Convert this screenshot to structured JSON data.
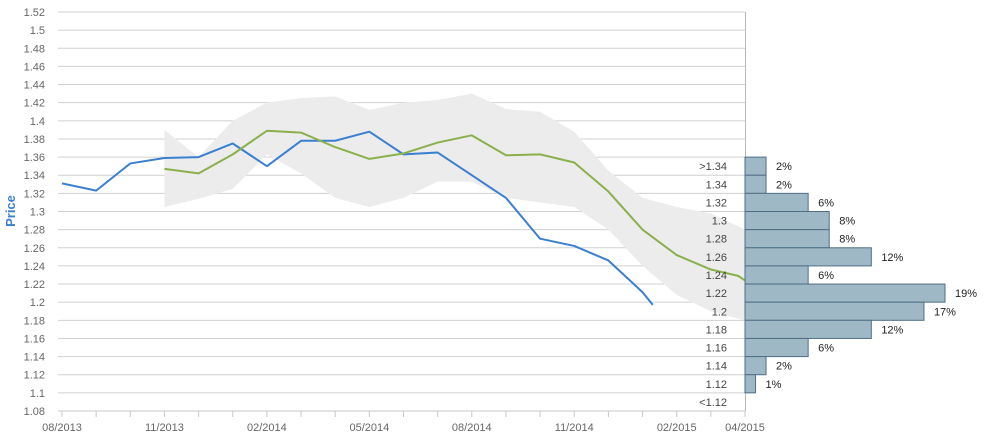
{
  "colors": {
    "actual": "#3a7fd0",
    "forecast": "#8ab04c",
    "band": "#ececec",
    "bars_fill": "#9fb8c6",
    "bars_stroke": "#4f6f86",
    "grid": "#d0d0d0",
    "axis_title": "#3a7fd0",
    "tick_text": "#666666"
  },
  "chart_data": [
    {
      "type": "line",
      "ylabel": "Price",
      "ylim": [
        1.08,
        1.52
      ],
      "y_ticks": [
        "1.08",
        "1.1",
        "1.12",
        "1.14",
        "1.16",
        "1.18",
        "1.2",
        "1.22",
        "1.24",
        "1.26",
        "1.28",
        "1.3",
        "1.32",
        "1.34",
        "1.36",
        "1.38",
        "1.4",
        "1.42",
        "1.44",
        "1.46",
        "1.48",
        "1.5",
        "1.52"
      ],
      "x_tick_labels": [
        "08/2013",
        "11/2013",
        "02/2014",
        "05/2014",
        "08/2014",
        "11/2014",
        "02/2015",
        "04/2015"
      ],
      "x_label_months": [
        0,
        3,
        6,
        9,
        12,
        15,
        18,
        20
      ],
      "x_range_months": [
        0,
        20
      ],
      "grid": true,
      "series": [
        {
          "key": "actual",
          "points": [
            [
              0,
              1.331
            ],
            [
              1,
              1.323
            ],
            [
              2,
              1.353
            ],
            [
              3,
              1.359
            ],
            [
              4,
              1.36
            ],
            [
              5,
              1.375
            ],
            [
              6,
              1.35
            ],
            [
              7,
              1.378
            ],
            [
              8,
              1.378
            ],
            [
              9,
              1.388
            ],
            [
              10,
              1.363
            ],
            [
              11,
              1.365
            ],
            [
              12,
              1.34
            ],
            [
              13,
              1.315
            ],
            [
              14,
              1.27
            ],
            [
              15,
              1.262
            ],
            [
              16,
              1.246
            ],
            [
              17,
              1.211
            ],
            [
              17.3,
              1.197
            ]
          ]
        },
        {
          "key": "forecast",
          "points": [
            [
              3,
              1.347
            ],
            [
              4,
              1.342
            ],
            [
              5,
              1.363
            ],
            [
              6,
              1.389
            ],
            [
              7,
              1.387
            ],
            [
              8,
              1.371
            ],
            [
              9,
              1.358
            ],
            [
              10,
              1.364
            ],
            [
              11,
              1.376
            ],
            [
              12,
              1.384
            ],
            [
              13,
              1.362
            ],
            [
              14,
              1.363
            ],
            [
              15,
              1.354
            ],
            [
              16,
              1.322
            ],
            [
              17,
              1.28
            ],
            [
              18,
              1.252
            ],
            [
              19,
              1.236
            ],
            [
              19.8,
              1.229
            ],
            [
              20,
              1.224
            ]
          ]
        }
      ],
      "band": {
        "upper": [
          [
            3,
            1.39
          ],
          [
            4,
            1.36
          ],
          [
            5,
            1.4
          ],
          [
            6,
            1.42
          ],
          [
            7,
            1.425
          ],
          [
            8,
            1.427
          ],
          [
            9,
            1.412
          ],
          [
            10,
            1.42
          ],
          [
            11,
            1.423
          ],
          [
            12,
            1.43
          ],
          [
            13,
            1.413
          ],
          [
            14,
            1.41
          ],
          [
            15,
            1.388
          ],
          [
            16,
            1.345
          ],
          [
            17,
            1.315
          ],
          [
            18,
            1.305
          ],
          [
            19,
            1.298
          ],
          [
            20,
            1.28
          ]
        ],
        "lower": [
          [
            3,
            1.305
          ],
          [
            4,
            1.314
          ],
          [
            5,
            1.325
          ],
          [
            6,
            1.363
          ],
          [
            7,
            1.342
          ],
          [
            8,
            1.315
          ],
          [
            9,
            1.305
          ],
          [
            10,
            1.315
          ],
          [
            11,
            1.333
          ],
          [
            12,
            1.333
          ],
          [
            13,
            1.315
          ],
          [
            14,
            1.31
          ],
          [
            15,
            1.305
          ],
          [
            16,
            1.28
          ],
          [
            17,
            1.24
          ],
          [
            18,
            1.208
          ],
          [
            19,
            1.19
          ],
          [
            20,
            1.18
          ]
        ]
      }
    },
    {
      "type": "bar",
      "orientation": "horizontal",
      "categories": [
        ">1.34",
        "1.34",
        "1.32",
        "1.3",
        "1.28",
        "1.26",
        "1.24",
        "1.22",
        "1.2",
        "1.18",
        "1.16",
        "1.14",
        "1.12",
        "<1.12"
      ],
      "values": [
        2,
        2,
        6,
        8,
        8,
        12,
        6,
        19,
        17,
        12,
        6,
        2,
        1,
        0
      ],
      "value_labels": [
        "2%",
        "2%",
        "6%",
        "8%",
        "8%",
        "12%",
        "6%",
        "19%",
        "17%",
        "12%",
        "6%",
        "2%",
        "1%",
        ""
      ]
    }
  ]
}
